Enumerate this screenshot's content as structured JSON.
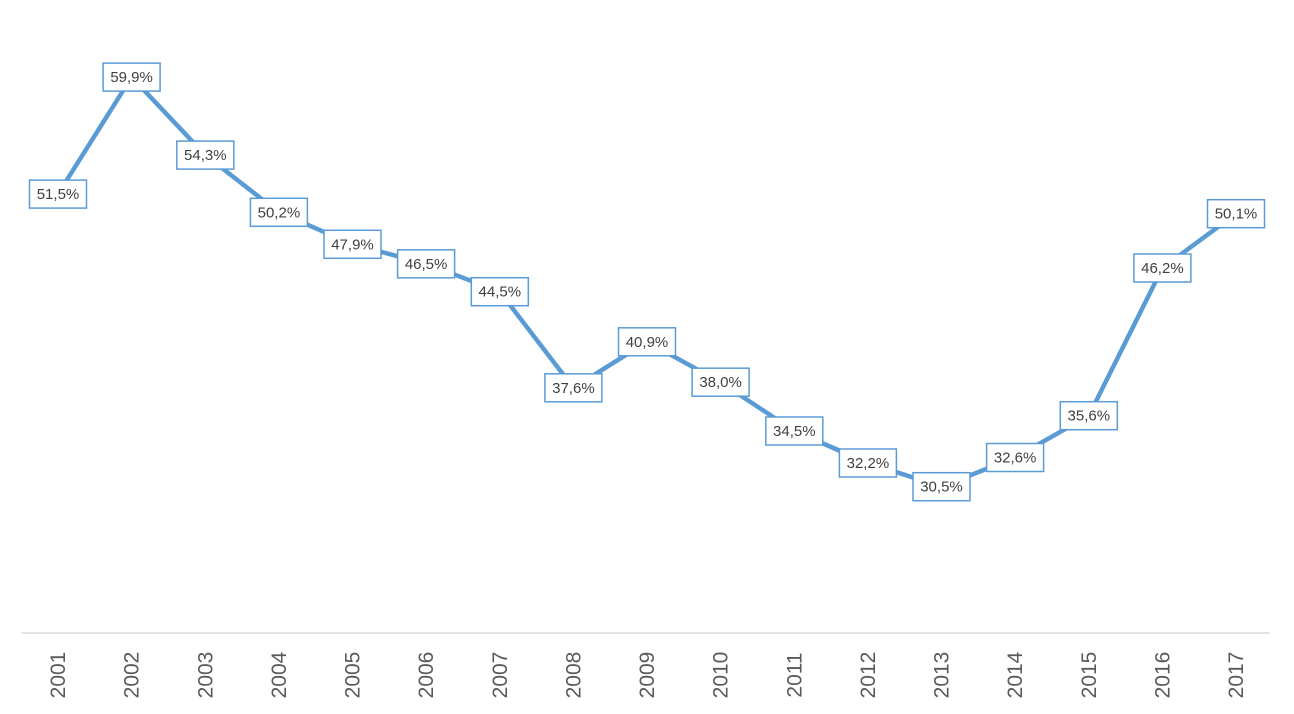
{
  "chart_data": {
    "type": "line",
    "title": "",
    "xlabel": "",
    "ylabel": "",
    "categories": [
      "2001",
      "2002",
      "2003",
      "2004",
      "2005",
      "2006",
      "2007",
      "2008",
      "2009",
      "2010",
      "2011",
      "2012",
      "2013",
      "2014",
      "2015",
      "2016",
      "2017"
    ],
    "series": [
      {
        "values": [
          51.5,
          59.9,
          54.3,
          50.2,
          47.9,
          46.5,
          44.5,
          37.6,
          40.9,
          38.0,
          34.5,
          32.2,
          30.5,
          32.6,
          35.6,
          46.2,
          50.1
        ],
        "data_labels": [
          "51,5%",
          "59,9%",
          "54,3%",
          "50,2%",
          "47,9%",
          "46,5%",
          "44,5%",
          "37,6%",
          "40,9%",
          "38,0%",
          "34,5%",
          "32,2%",
          "30,5%",
          "32,6%",
          "35,6%",
          "46,2%",
          "50,1%"
        ]
      }
    ],
    "ylim": [
      20,
      64
    ],
    "grid": false,
    "legend": "none",
    "colors": {
      "line": "#5b9bd5",
      "axis": "#d9d9d9",
      "label_text": "#404040",
      "tick_text": "#595959"
    }
  }
}
